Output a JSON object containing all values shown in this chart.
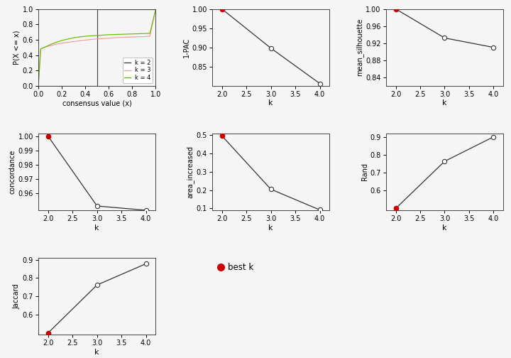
{
  "ecdf": {
    "k2": {
      "x": [
        0.0,
        0.499,
        0.499,
        0.501,
        0.501,
        1.0
      ],
      "y": [
        0.0,
        0.0,
        0.5,
        0.5,
        1.0,
        1.0
      ],
      "color": "#444444",
      "label": "k = 2"
    },
    "k3": {
      "x": [
        0.0,
        0.02,
        0.05,
        0.1,
        0.15,
        0.2,
        0.25,
        0.3,
        0.35,
        0.4,
        0.5,
        0.6,
        0.7,
        0.8,
        0.9,
        0.95,
        1.0
      ],
      "y": [
        0.0,
        0.48,
        0.5,
        0.52,
        0.54,
        0.555,
        0.565,
        0.575,
        0.585,
        0.595,
        0.61,
        0.62,
        0.63,
        0.635,
        0.64,
        0.645,
        1.0
      ],
      "color": "#ff9999",
      "label": "k = 3"
    },
    "k4": {
      "x": [
        0.0,
        0.02,
        0.05,
        0.1,
        0.15,
        0.2,
        0.3,
        0.4,
        0.5,
        0.6,
        0.7,
        0.8,
        0.9,
        0.95,
        1.0
      ],
      "y": [
        0.0,
        0.48,
        0.5,
        0.535,
        0.565,
        0.59,
        0.625,
        0.645,
        0.655,
        0.665,
        0.67,
        0.675,
        0.68,
        0.682,
        1.0
      ],
      "color": "#66bb00",
      "label": "k = 4"
    },
    "xlabel": "consensus value (x)",
    "ylabel": "P(X <= x)",
    "xlim": [
      0.0,
      1.0
    ],
    "ylim": [
      0.0,
      1.0
    ]
  },
  "pac": {
    "k": [
      2,
      3,
      4
    ],
    "y": [
      1.0,
      0.898,
      0.806
    ],
    "best_k": 2,
    "ylabel": "1-PAC",
    "xlabel": "k",
    "ylim": [
      0.8,
      1.0
    ],
    "yticks": [
      0.85,
      0.9,
      0.95,
      1.0
    ],
    "yticklabels": [
      "0.85",
      "0.90",
      "0.95",
      "1.00"
    ]
  },
  "silhouette": {
    "k": [
      2,
      3,
      4
    ],
    "y": [
      1.0,
      0.932,
      0.91
    ],
    "best_k": 2,
    "ylabel": "mean_silhouette",
    "xlabel": "k",
    "ylim": [
      0.82,
      1.0
    ],
    "yticks": [
      0.84,
      0.88,
      0.92,
      0.96,
      1.0
    ],
    "yticklabels": [
      "0.84",
      "0.88",
      "0.92",
      "0.96",
      "1.00"
    ]
  },
  "concordance": {
    "k": [
      2,
      3,
      4
    ],
    "y": [
      1.0,
      0.951,
      0.948
    ],
    "best_k": 2,
    "ylabel": "concordance",
    "xlabel": "k",
    "ylim": [
      0.948,
      1.002
    ],
    "yticks": [
      0.96,
      0.97,
      0.98,
      0.99,
      1.0
    ],
    "yticklabels": [
      "0.96",
      "0.97",
      "0.98",
      "0.99",
      "1.00"
    ]
  },
  "area_increased": {
    "k": [
      2,
      3,
      4
    ],
    "y": [
      0.497,
      0.205,
      0.092
    ],
    "best_k": 2,
    "ylabel": "area_increased",
    "xlabel": "k",
    "ylim": [
      0.09,
      0.51
    ],
    "yticks": [
      0.1,
      0.2,
      0.3,
      0.4,
      0.5
    ],
    "yticklabels": [
      "0.1",
      "0.2",
      "0.3",
      "0.4",
      "0.5"
    ]
  },
  "rand": {
    "k": [
      2,
      3,
      4
    ],
    "y": [
      0.5,
      0.764,
      0.901
    ],
    "best_k": 2,
    "ylabel": "Rand",
    "xlabel": "k",
    "ylim": [
      0.49,
      0.92
    ],
    "yticks": [
      0.6,
      0.7,
      0.8,
      0.9
    ],
    "yticklabels": [
      "0.6",
      "0.7",
      "0.8",
      "0.9"
    ]
  },
  "jaccard": {
    "k": [
      2,
      3,
      4
    ],
    "y": [
      0.5,
      0.762,
      0.878
    ],
    "best_k": 2,
    "ylabel": "Jaccard",
    "xlabel": "k",
    "ylim": [
      0.49,
      0.91
    ],
    "yticks": [
      0.6,
      0.7,
      0.8,
      0.9
    ],
    "yticklabels": [
      "0.6",
      "0.7",
      "0.8",
      "0.9"
    ]
  },
  "legend_title": "best k",
  "best_k_color": "#cc0000",
  "line_color": "#333333",
  "bg_color": "#f5f5f5"
}
